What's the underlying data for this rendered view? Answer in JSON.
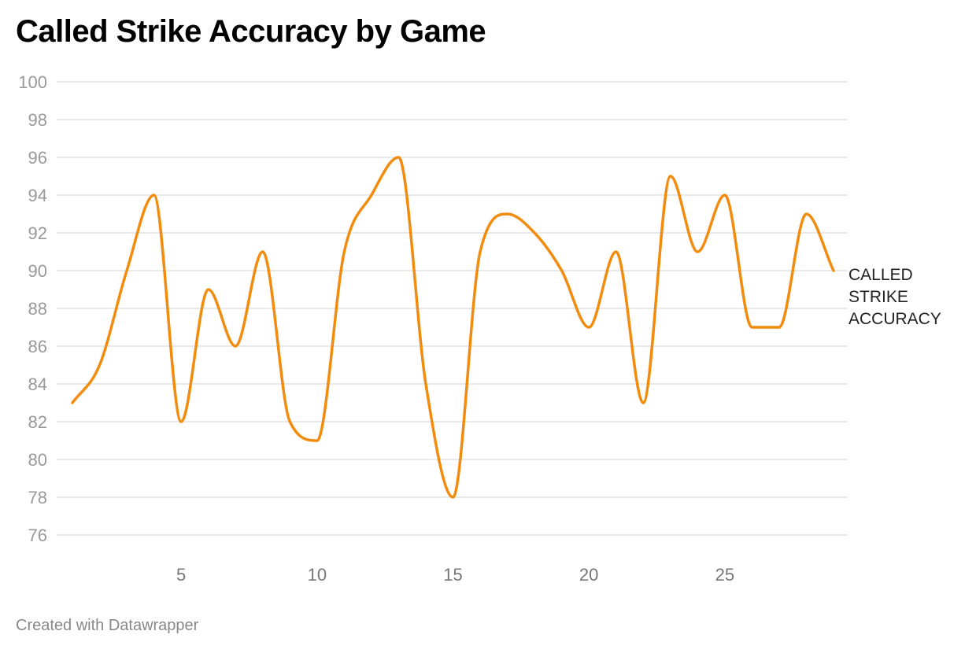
{
  "title": "Called Strike Accuracy by Game",
  "footer": "Created with Datawrapper",
  "chart_data": {
    "type": "line",
    "title": "Called Strike Accuracy by Game",
    "xlabel": "",
    "ylabel": "",
    "ylim": [
      76,
      100
    ],
    "xlim": [
      1,
      29
    ],
    "y_ticks": [
      100,
      98,
      96,
      94,
      92,
      90,
      88,
      86,
      84,
      82,
      80,
      78,
      76
    ],
    "x_ticks": [
      5,
      10,
      15,
      20,
      25
    ],
    "grid": "horizontal",
    "colors": {
      "line": "#F28C0F",
      "grid": "#E2E2E2"
    },
    "series": [
      {
        "name": "CALLED STRIKE ACCURACY",
        "label_lines": [
          "CALLED",
          "STRIKE",
          "ACCURACY"
        ],
        "x": [
          1,
          2,
          3,
          4,
          5,
          6,
          7,
          8,
          9,
          10,
          11,
          12,
          13,
          14,
          15,
          16,
          17,
          18,
          19,
          20,
          21,
          22,
          23,
          24,
          25,
          26,
          27,
          28,
          29
        ],
        "values": [
          83,
          85,
          90,
          94,
          82,
          89,
          86,
          91,
          82,
          81,
          91,
          94,
          96,
          84,
          78,
          91,
          93,
          92,
          90,
          87,
          91,
          83,
          95,
          91,
          94,
          87,
          87,
          93,
          90
        ]
      }
    ]
  }
}
